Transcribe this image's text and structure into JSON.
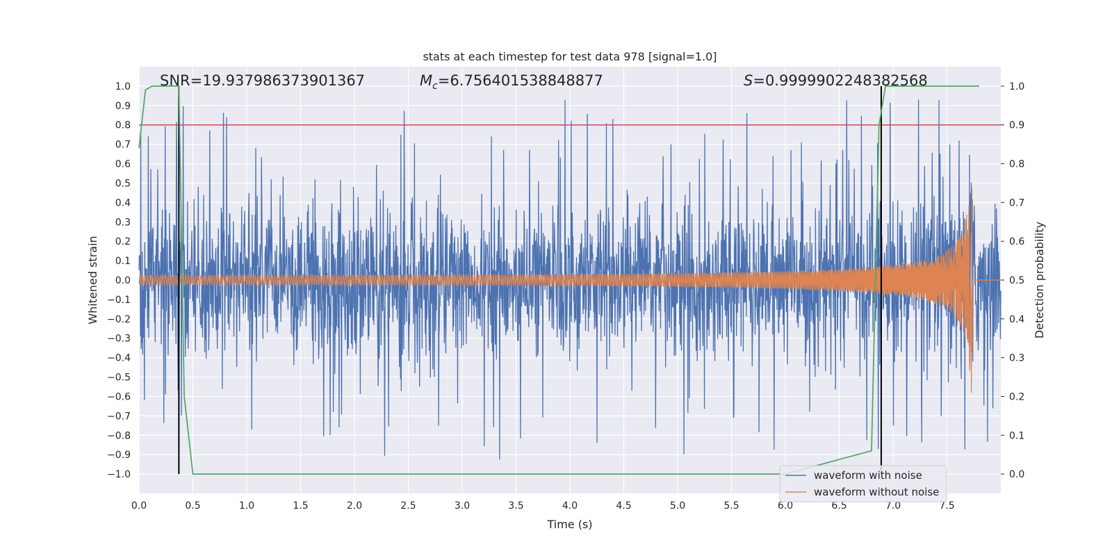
{
  "chart_data": {
    "type": "line",
    "title": "stats at each timestep for test data 978 [signal=1.0]",
    "xlabel": "Time (s)",
    "ylabel": "Whitened strain",
    "y2label": "Detection probability",
    "xlim": [
      0.0,
      8.0
    ],
    "ylim": [
      -1.1,
      1.1
    ],
    "y2lim": [
      -0.05,
      1.05
    ],
    "xticks": [
      0.0,
      0.5,
      1.0,
      1.5,
      2.0,
      2.5,
      3.0,
      3.5,
      4.0,
      4.5,
      5.0,
      5.5,
      6.0,
      6.5,
      7.0,
      7.5
    ],
    "xtick_labels": [
      "0.0",
      "0.5",
      "1.0",
      "1.5",
      "2.0",
      "2.5",
      "3.0",
      "3.5",
      "4.0",
      "4.5",
      "5.0",
      "5.5",
      "6.0",
      "6.5",
      "7.0",
      "7.5"
    ],
    "yticks": [
      1.0,
      0.9,
      0.8,
      0.7,
      0.6,
      0.5,
      0.4,
      0.3,
      0.2,
      0.1,
      0.0,
      -0.1,
      -0.2,
      -0.3,
      -0.4,
      -0.5,
      -0.6,
      -0.7,
      -0.8,
      -0.9,
      -1.0
    ],
    "ytick_labels": [
      "1.0",
      "0.9",
      "0.8",
      "0.7",
      "0.6",
      "0.5",
      "0.4",
      "0.3",
      "0.2",
      "0.1",
      "0.0",
      "−0.1",
      "−0.2",
      "−0.3",
      "−0.4",
      "−0.5",
      "−0.6",
      "−0.7",
      "−0.8",
      "−0.9",
      "−1.0"
    ],
    "y2ticks": [
      1.0,
      0.9,
      0.8,
      0.7,
      0.6,
      0.5,
      0.4,
      0.3,
      0.2,
      0.1,
      0.0
    ],
    "y2tick_labels": [
      "1.0",
      "0.9",
      "0.8",
      "0.7",
      "0.6",
      "0.5",
      "0.4",
      "0.3",
      "0.2",
      "0.1",
      "0.0"
    ],
    "grid": true,
    "annotations": {
      "snr": "SNR=19.937986373901367",
      "mc_symbol": "M",
      "mc_subscript": "c",
      "mc_value": "=6.756401538848877",
      "s_symbol": "S",
      "s_value": "=0.9999902248382568"
    },
    "threshold": {
      "value": 0.9,
      "axis": "y2",
      "color": "#c44e52"
    },
    "vertical_markers": {
      "x": [
        0.37,
        6.89
      ],
      "color": "#000000"
    },
    "series": [
      {
        "name": "waveform with noise",
        "color": "#4c72b0",
        "axis": "y",
        "kind": "noise",
        "x_range": [
          0.0,
          8.0
        ],
        "typical_amplitude": 0.35,
        "peak_amplitude": 0.93
      },
      {
        "name": "waveform without noise",
        "color": "#dd8452",
        "axis": "y",
        "kind": "chirp",
        "x_range": [
          0.0,
          7.74
        ],
        "start_amplitude": 0.025,
        "end_amplitude": 0.58,
        "merger_time": 7.74
      },
      {
        "name": "detection probability",
        "color": "#55a868",
        "axis": "y2",
        "x": [
          0.0,
          0.06,
          0.12,
          0.37,
          0.42,
          0.5,
          6.0,
          6.8,
          6.87,
          6.93,
          7.0,
          7.5,
          7.8
        ],
        "values": [
          0.84,
          0.99,
          1.0,
          1.0,
          0.2,
          0.0,
          0.0,
          0.06,
          0.9,
          1.0,
          1.0,
          1.0,
          1.0
        ]
      }
    ],
    "legend": {
      "position": "lower-right",
      "entries": [
        {
          "label": "waveform with noise",
          "color": "#4c72b0"
        },
        {
          "label": "waveform without noise",
          "color": "#dd8452"
        }
      ]
    }
  }
}
